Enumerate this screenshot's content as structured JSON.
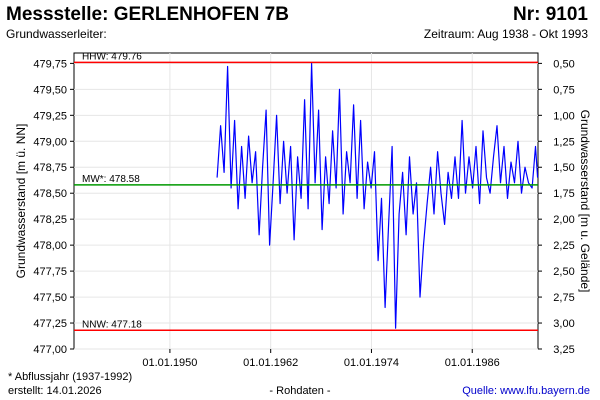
{
  "header": {
    "title": "Messstelle: GERLENHOFEN 7B",
    "number": "Nr: 9101",
    "subtitle_left": "Grundwasserleiter:",
    "subtitle_right": "Zeitraum: Aug 1938 - Okt 1993"
  },
  "footer": {
    "note": "* Abflussjahr (1937-1992)",
    "created": "erstellt:  14.01.2026",
    "data_type": "- Rohdaten -",
    "source": "Quelle: www.lfu.bayern.de"
  },
  "chart_data": {
    "type": "line",
    "ylabel_left": "Grundwasserstand [m ü. NN]",
    "ylabel_right": "Grundwasserstand [m u. Gelände]",
    "ylim": [
      477.0,
      479.85
    ],
    "y_ticks": [
      "477,00",
      "477,25",
      "477,50",
      "477,75",
      "478,00",
      "478,25",
      "478,50",
      "478,75",
      "479,00",
      "479,25",
      "479,50",
      "479,75"
    ],
    "y2_ticks": [
      "0,50",
      "0,75",
      "1,00",
      "1,25",
      "1,50",
      "1,75",
      "2,00",
      "2,25",
      "2,50",
      "2,75",
      "3,00",
      "3,25"
    ],
    "x_range": [
      "1938-08-01",
      "1993-10-31"
    ],
    "x_ticks": [
      "01.01.1950",
      "01.01.1962",
      "01.01.1974",
      "01.01.1986"
    ],
    "reference_lines": [
      {
        "label": "HHW: 479.76",
        "value": 479.76,
        "color": "#ff0000"
      },
      {
        "label": "MW*: 478.58",
        "value": 478.58,
        "color": "#009900"
      },
      {
        "label": "NNW: 477.18",
        "value": 477.18,
        "color": "#ff0000"
      }
    ],
    "series": [
      {
        "color": "#0000ff",
        "x": [
          "1955-08",
          "1956-01",
          "1956-06",
          "1956-11",
          "1957-04",
          "1957-09",
          "1958-02",
          "1958-07",
          "1958-12",
          "1959-05",
          "1959-10",
          "1960-03",
          "1960-08",
          "1961-01",
          "1961-06",
          "1961-11",
          "1962-04",
          "1962-09",
          "1963-02",
          "1963-07",
          "1963-12",
          "1964-05",
          "1964-10",
          "1965-03",
          "1965-08",
          "1966-01",
          "1966-06",
          "1966-11",
          "1967-04",
          "1967-09",
          "1968-02",
          "1968-07",
          "1968-12",
          "1969-05",
          "1969-10",
          "1970-03",
          "1970-08",
          "1971-01",
          "1971-06",
          "1971-11",
          "1972-04",
          "1972-09",
          "1973-02",
          "1973-07",
          "1973-12",
          "1974-05",
          "1974-10",
          "1975-03",
          "1975-08",
          "1976-01",
          "1976-06",
          "1976-11",
          "1977-04",
          "1977-09",
          "1978-02",
          "1978-07",
          "1978-12",
          "1979-05",
          "1979-10",
          "1980-03",
          "1980-08",
          "1981-01",
          "1981-06",
          "1981-11",
          "1982-04",
          "1982-09",
          "1983-02",
          "1983-07",
          "1983-12",
          "1984-05",
          "1984-10",
          "1985-03",
          "1985-08",
          "1986-01",
          "1986-06",
          "1986-11",
          "1987-04",
          "1987-09",
          "1988-02",
          "1988-07",
          "1988-12",
          "1989-05",
          "1989-10",
          "1990-03",
          "1990-08",
          "1991-01",
          "1991-06",
          "1991-11",
          "1992-04",
          "1992-09",
          "1993-02",
          "1993-07",
          "1993-10"
        ],
        "values": [
          478.65,
          479.15,
          478.7,
          479.72,
          478.55,
          479.2,
          478.35,
          478.95,
          478.45,
          479.05,
          478.6,
          478.9,
          478.1,
          478.75,
          479.3,
          478.0,
          478.6,
          479.25,
          478.4,
          479.0,
          478.5,
          478.95,
          478.05,
          478.85,
          478.45,
          479.4,
          478.35,
          479.75,
          478.6,
          479.3,
          478.15,
          478.85,
          478.4,
          479.1,
          478.55,
          479.5,
          478.3,
          478.9,
          478.6,
          479.35,
          478.45,
          479.2,
          478.35,
          478.8,
          478.55,
          478.9,
          477.85,
          478.45,
          477.4,
          478.2,
          478.95,
          477.2,
          478.3,
          478.7,
          478.1,
          478.85,
          478.3,
          478.6,
          477.5,
          478.0,
          478.4,
          478.75,
          478.3,
          478.9,
          478.5,
          478.2,
          478.7,
          478.45,
          478.85,
          478.45,
          479.2,
          478.5,
          478.85,
          478.55,
          478.95,
          478.4,
          479.1,
          478.65,
          478.5,
          478.85,
          479.15,
          478.6,
          478.95,
          478.45,
          478.8,
          478.6,
          479.0,
          478.5,
          478.75,
          478.6,
          478.55,
          478.95,
          478.65
        ]
      }
    ]
  }
}
